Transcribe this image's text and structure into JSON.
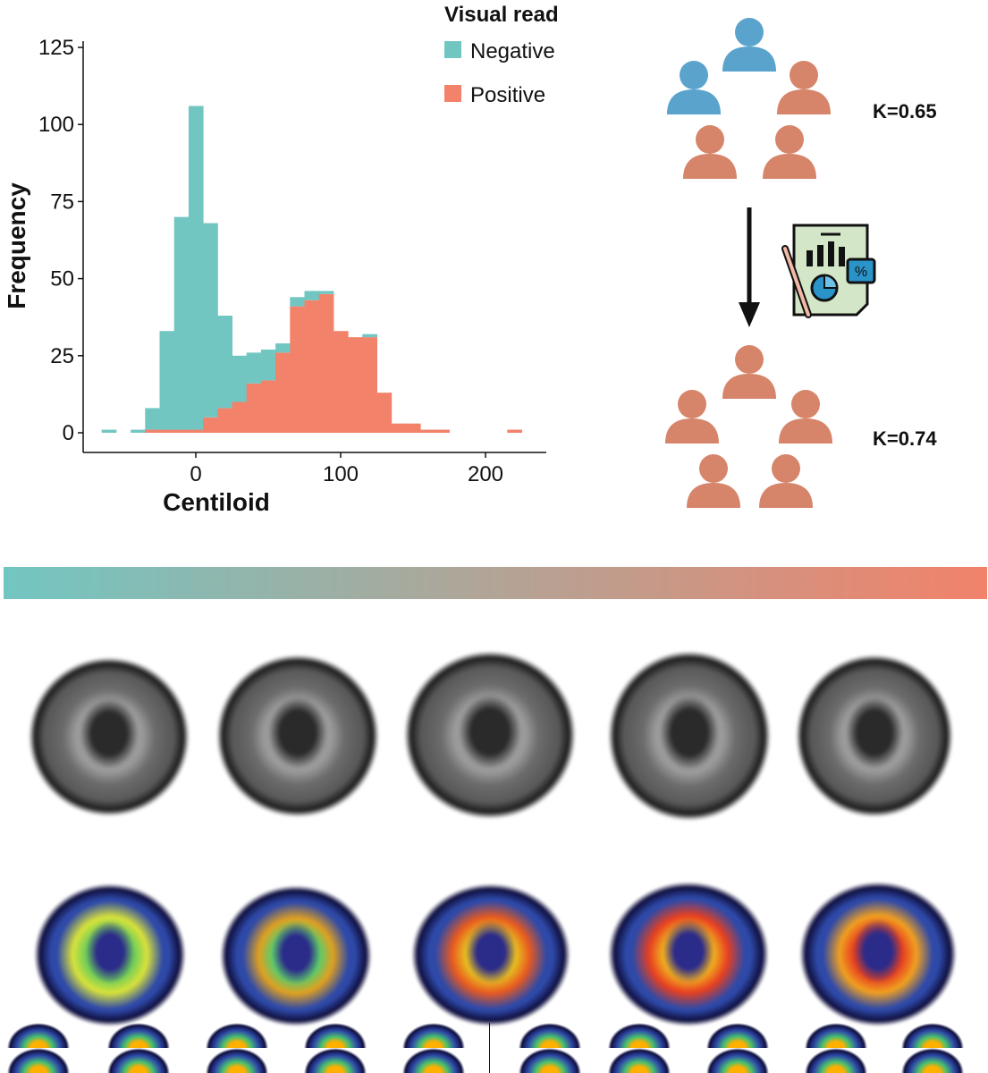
{
  "chart_data": {
    "type": "bar",
    "stacked": true,
    "title": "",
    "xlabel": "Centiloid",
    "ylabel": "Frequency",
    "xlim": [
      -75,
      235
    ],
    "ylim": [
      0,
      125
    ],
    "x_ticks": [
      0,
      100,
      200
    ],
    "y_ticks": [
      0,
      25,
      50,
      75,
      100,
      125
    ],
    "legend_title": "Visual read",
    "legend_position": "top-right",
    "bin_width": 10,
    "bin_centers": [
      -60,
      -50,
      -40,
      -30,
      -20,
      -10,
      0,
      10,
      20,
      30,
      40,
      50,
      60,
      70,
      80,
      90,
      100,
      110,
      120,
      130,
      140,
      150,
      160,
      170,
      180,
      190,
      200,
      210,
      220
    ],
    "series": [
      {
        "name": "Negative",
        "color": "#72c6c2",
        "values": [
          1,
          0,
          1,
          7,
          32,
          69,
          105,
          63,
          30,
          15,
          10,
          10,
          3,
          3,
          3,
          1,
          0,
          0,
          1,
          0,
          0,
          0,
          0,
          0,
          0,
          0,
          0,
          0,
          0
        ]
      },
      {
        "name": "Positive",
        "color": "#f2826a",
        "values": [
          0,
          0,
          0,
          1,
          1,
          1,
          1,
          5,
          8,
          10,
          16,
          17,
          26,
          41,
          43,
          45,
          33,
          31,
          31,
          13,
          3,
          3,
          1,
          1,
          0,
          0,
          0,
          0,
          1
        ]
      }
    ]
  },
  "raters": {
    "before_kappa": "K=0.65",
    "after_kappa": "K=0.74",
    "color_negative": "#5aa3cc",
    "color_positive": "#d6856a",
    "arrow_icon": "down-arrow-icon",
    "report_icon": "analytics-report-icon"
  },
  "gradient": {
    "start_color": "#72c6c2",
    "end_color": "#f2826a"
  },
  "scans": {
    "structural_count": 5,
    "pet_count": 5
  }
}
